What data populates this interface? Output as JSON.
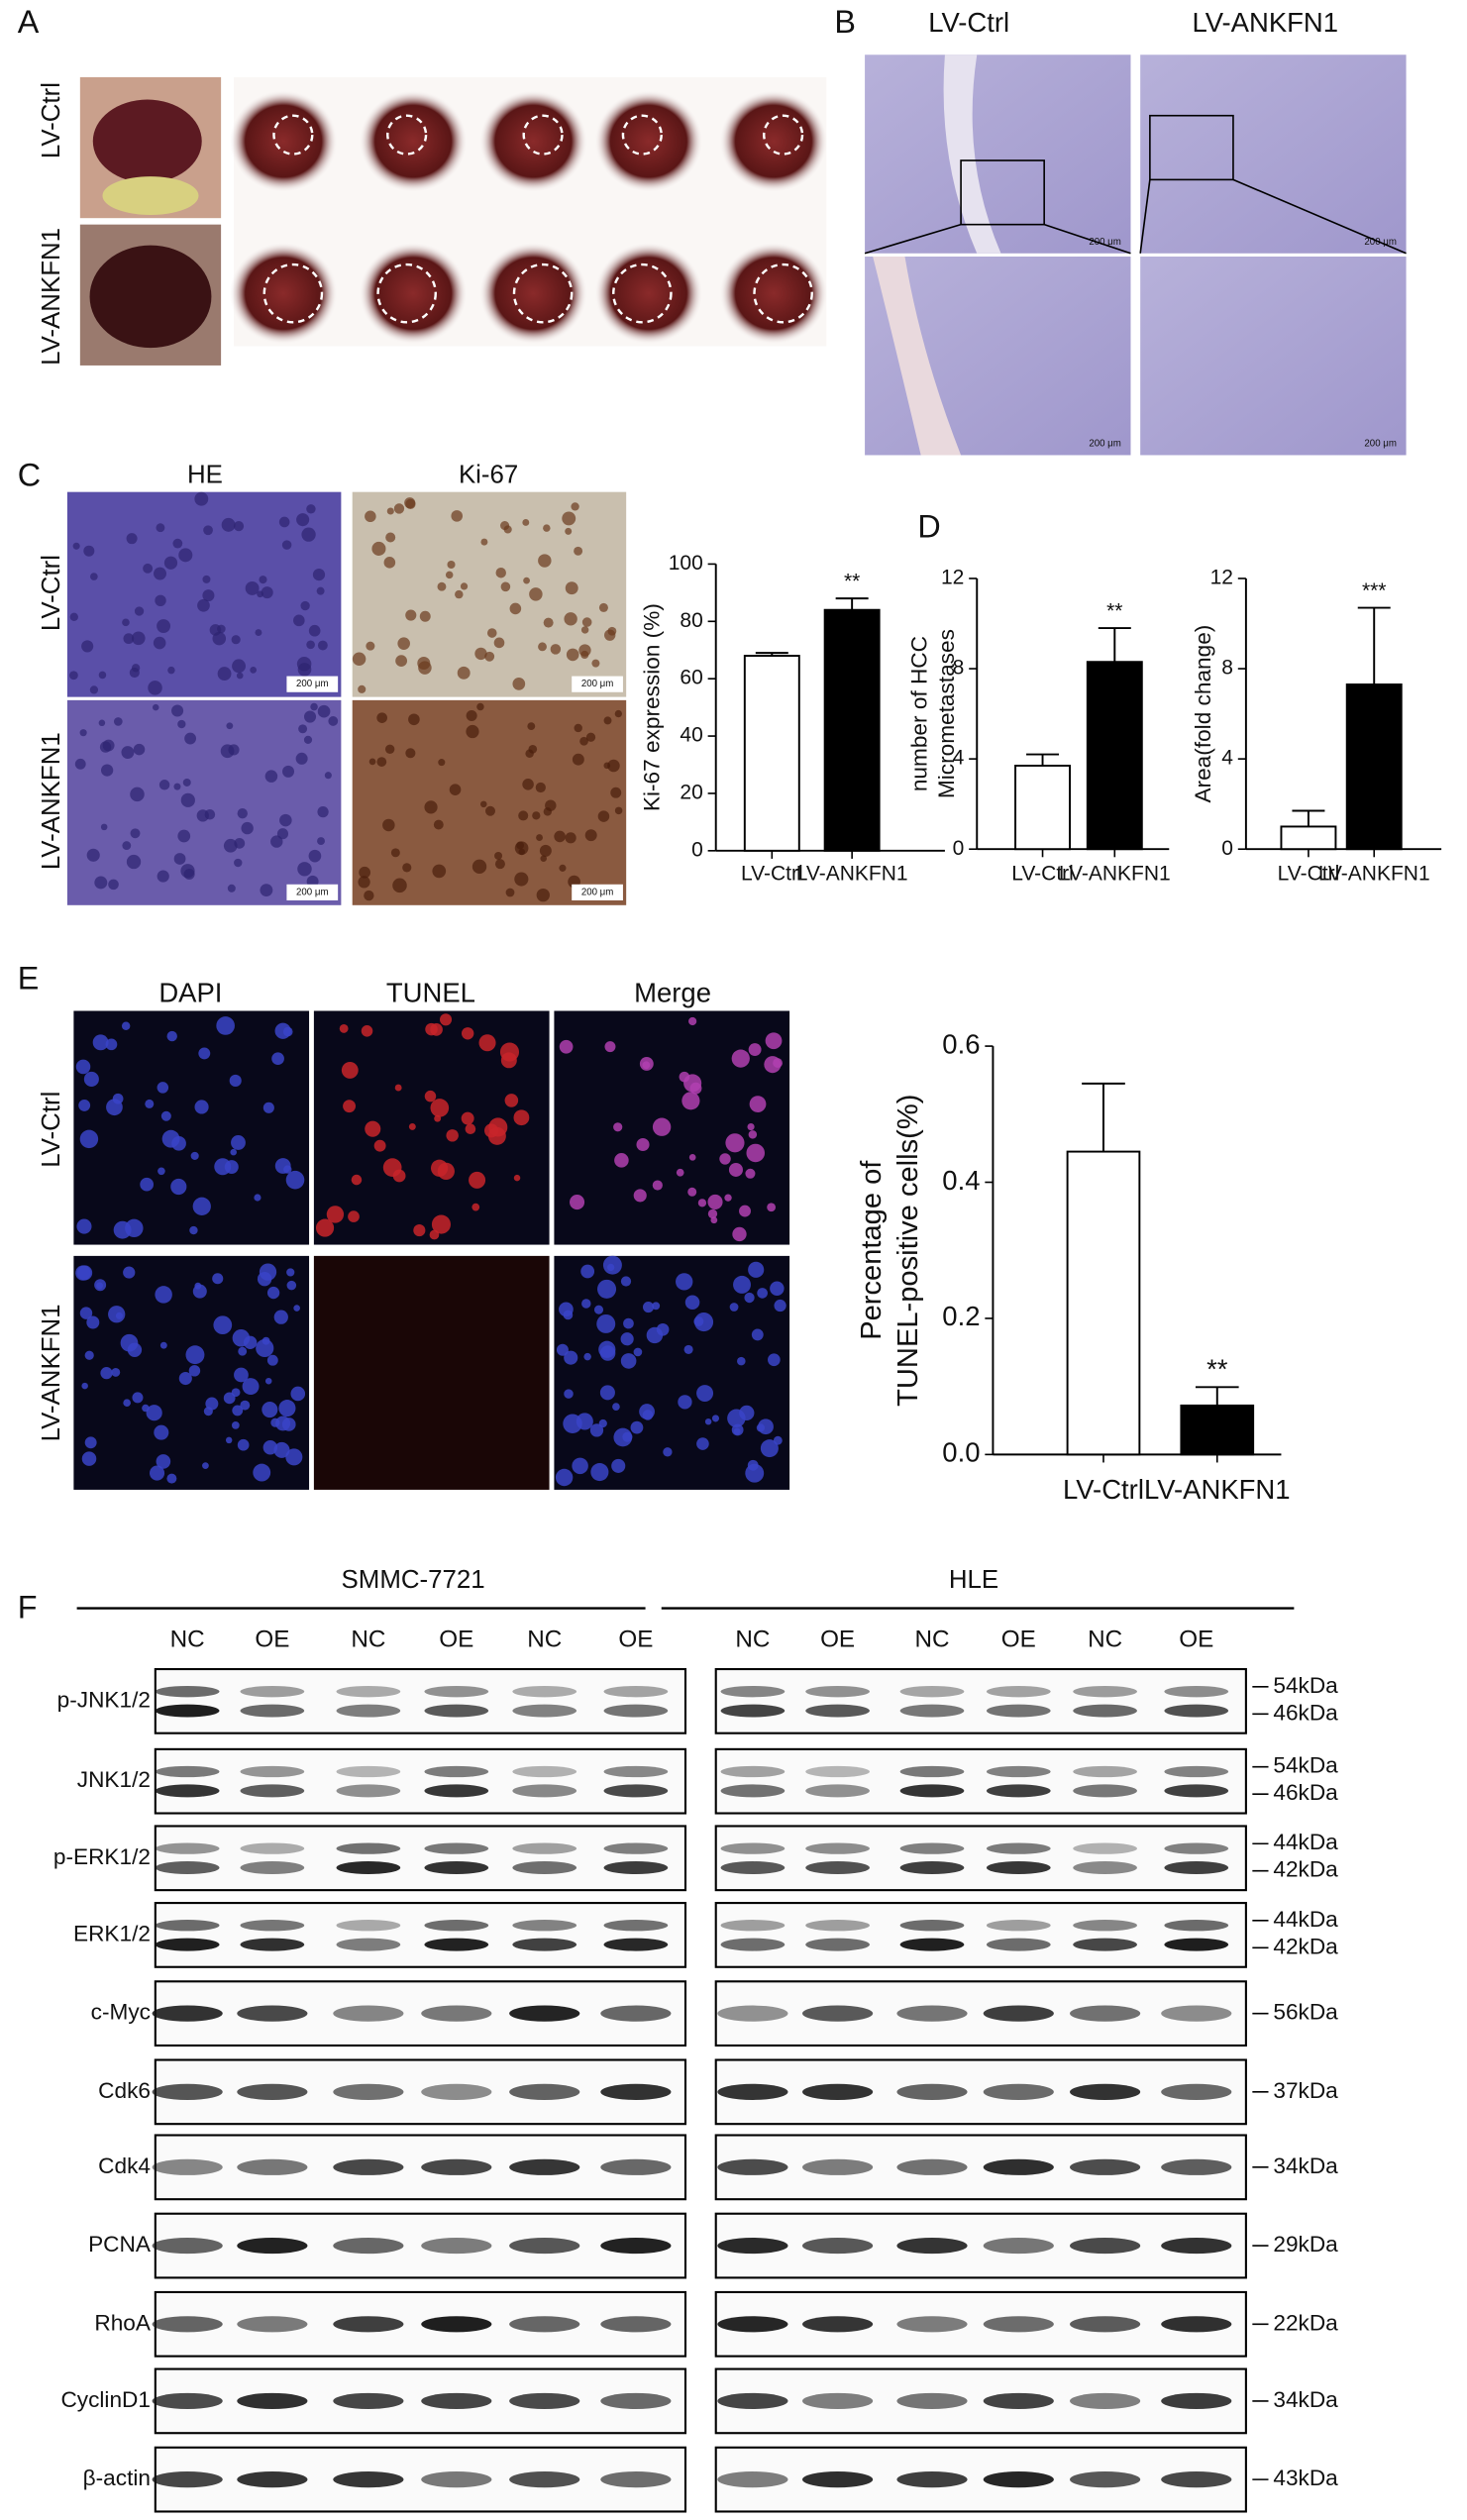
{
  "panel_labels": [
    "A",
    "B",
    "C",
    "D",
    "E",
    "F"
  ],
  "panel_a": {
    "row_labels": [
      "LV-Ctrl",
      "LV-ANKFN1"
    ]
  },
  "panel_b": {
    "col_labels": [
      "LV-Ctrl",
      "LV-ANKFN1"
    ],
    "scale_bar": "200 μm"
  },
  "panel_c": {
    "col_labels": [
      "HE",
      "Ki-67"
    ],
    "row_labels": [
      "LV-Ctrl",
      "LV-ANKFN1"
    ],
    "scale_bar": "200 μm"
  },
  "panel_e": {
    "col_labels": [
      "DAPI",
      "TUNEL",
      "Merge"
    ],
    "row_labels": [
      "LV-Ctrl",
      "LV-ANKFN1"
    ]
  },
  "panel_f": {
    "groups": [
      "SMMC-7721",
      "HLE"
    ],
    "lane_labels": [
      "NC",
      "OE",
      "NC",
      "OE",
      "NC",
      "OE"
    ],
    "proteins": [
      {
        "name": "p-JNK1/2",
        "sizes": [
          "54kDa",
          "46kDa"
        ]
      },
      {
        "name": "JNK1/2",
        "sizes": [
          "54kDa",
          "46kDa"
        ]
      },
      {
        "name": "p-ERK1/2",
        "sizes": [
          "44kDa",
          "42kDa"
        ]
      },
      {
        "name": "ERK1/2",
        "sizes": [
          "44kDa",
          "42kDa"
        ]
      },
      {
        "name": "c-Myc",
        "sizes": [
          "56kDa"
        ]
      },
      {
        "name": "Cdk6",
        "sizes": [
          "37kDa"
        ]
      },
      {
        "name": "Cdk4",
        "sizes": [
          "34kDa"
        ]
      },
      {
        "name": "PCNA",
        "sizes": [
          "29kDa"
        ]
      },
      {
        "name": "RhoA",
        "sizes": [
          "22kDa"
        ]
      },
      {
        "name": "CyclinD1",
        "sizes": [
          "34kDa"
        ]
      },
      {
        "name": "β-actin",
        "sizes": [
          "43kDa"
        ]
      }
    ]
  },
  "chart_data": [
    {
      "type": "bar",
      "y_label": [
        "Ki-67 expression (%)"
      ],
      "categories": [
        "LV-Ctrl",
        "LV-ANKFN1"
      ],
      "values": [
        68,
        84
      ],
      "errors": [
        1,
        4
      ],
      "colors": [
        "#ffffff",
        "#000000"
      ],
      "ylim": [
        0,
        100
      ],
      "yticks": [
        0,
        20,
        40,
        60,
        80,
        100
      ],
      "annotation": "**"
    },
    {
      "type": "bar",
      "y_label": [
        "number of HCC",
        "Micrometastases"
      ],
      "categories": [
        "LV-Ctrl",
        "LV-ANKFN1"
      ],
      "values": [
        3.7,
        8.3
      ],
      "errors": [
        0.5,
        1.5
      ],
      "colors": [
        "#ffffff",
        "#000000"
      ],
      "ylim": [
        0,
        12
      ],
      "yticks": [
        0,
        4,
        8,
        12
      ],
      "annotation": "**"
    },
    {
      "type": "bar",
      "y_label": [
        "Area(fold change)"
      ],
      "categories": [
        "LV-Ctrl",
        "LV-ANKFN1"
      ],
      "values": [
        1.0,
        7.3
      ],
      "errors": [
        0.7,
        3.4
      ],
      "colors": [
        "#ffffff",
        "#000000"
      ],
      "ylim": [
        0,
        12
      ],
      "yticks": [
        0,
        4,
        8,
        12
      ],
      "annotation": "***"
    },
    {
      "type": "bar",
      "y_label": [
        "Percentage of",
        "TUNEL-positive cells(%)"
      ],
      "categories": [
        "LV-Ctrl",
        "LV-ANKFN1"
      ],
      "values": [
        0.445,
        0.072
      ],
      "errors": [
        0.1,
        0.027
      ],
      "colors": [
        "#ffffff",
        "#000000"
      ],
      "ylim": [
        0,
        0.6
      ],
      "yticks": [
        {
          "value": 0,
          "label": "0.0"
        },
        0.2,
        0.4,
        0.6
      ],
      "annotation": "**"
    }
  ]
}
